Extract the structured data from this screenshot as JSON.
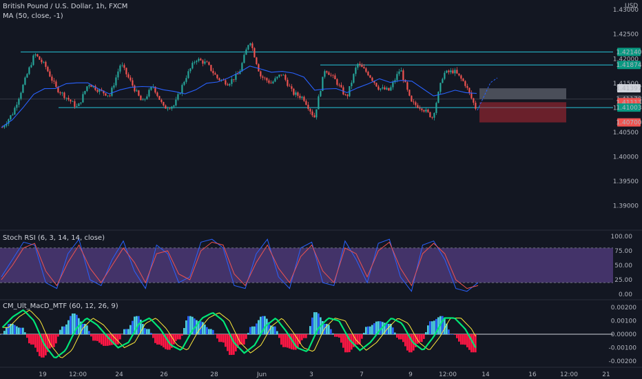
{
  "header": {
    "symbol": "British Pound / U.S. Dollar, 1h, FXCM",
    "ma_legend": "MA (50, close, -1)",
    "currency": "USD"
  },
  "indicators": {
    "stoch_legend": "Stoch RSI (6, 3, 14, 14, close)",
    "macd_legend": "CM_Ult_MacD_MTF (60, 12, 26, 9)"
  },
  "colors": {
    "background": "#131722",
    "candle_up": "#26a69a",
    "candle_down": "#ef5350",
    "ma": "#2962ff",
    "channel": "#26c6da",
    "rsi_band": "#7e57c2",
    "rsi_k": "#2962ff",
    "rsi_d": "#ef5350",
    "macd_up_strong": "#00e676",
    "macd_down_strong": "#ff1744",
    "macd_blue": "#2962ff",
    "macd_aqua": "#4dd0e1",
    "signal_line": "#ffeb3b"
  },
  "chart_data": [
    {
      "type": "candlestick",
      "title": "British Pound / U.S. Dollar, 1h, FXCM",
      "y_axis": {
        "unit": "USD",
        "ylim": [
          1.385,
          1.432
        ],
        "ticks": [
          "1.43000",
          "1.42500",
          "1.42000",
          "1.41500",
          "1.41000",
          "1.40500",
          "1.40000",
          "1.39500",
          "1.39000"
        ]
      },
      "x_axis": {
        "ticks": [
          "19",
          "12:00",
          "24",
          "26",
          "28",
          "Jun",
          "3",
          "7",
          "9",
          "12:00",
          "14",
          "16",
          "12:00",
          "21"
        ]
      },
      "price_labels": [
        {
          "value": "1.42140",
          "style": "channel"
        },
        {
          "value": "1.41874",
          "style": "channel"
        },
        {
          "value": "1.41397",
          "style": "target"
        },
        {
          "value": "1.41178",
          "style": "last"
        },
        {
          "value": "1.41113",
          "style": "stop"
        },
        {
          "value": "1.41003",
          "style": "channel"
        },
        {
          "value": "1.40700",
          "style": "stop"
        }
      ],
      "horizontal_lines": [
        1.4214,
        1.41874,
        1.41003
      ],
      "position": {
        "entry": 1.41178,
        "target": 1.41397,
        "stop": 1.407
      },
      "candles_summary": "hourly candles ranging within approx 1.4070 - 1.4250 channel",
      "key_closes": [
        1.406,
        1.409,
        1.415,
        1.421,
        1.4185,
        1.414,
        1.412,
        1.41,
        1.415,
        1.4135,
        1.4125,
        1.419,
        1.415,
        1.411,
        1.4145,
        1.41,
        1.4105,
        1.416,
        1.42,
        1.419,
        1.416,
        1.415,
        1.417,
        1.424,
        1.4165,
        1.415,
        1.417,
        1.413,
        1.412,
        1.408,
        1.418,
        1.4155,
        1.412,
        1.419,
        1.417,
        1.414,
        1.4135,
        1.418,
        1.411,
        1.41,
        1.408,
        1.417,
        1.4175,
        1.415,
        1.41
      ]
    },
    {
      "type": "line",
      "title": "Stoch RSI (6, 3, 14, 14, close)",
      "ylim": [
        0,
        100
      ],
      "ticks": [
        "100.00",
        "75.00",
        "50.00",
        "25.00",
        "0.00"
      ],
      "band": [
        20,
        80
      ],
      "series": [
        {
          "name": "K",
          "values": [
            30,
            60,
            90,
            85,
            20,
            10,
            70,
            95,
            25,
            15,
            60,
            92,
            40,
            10,
            85,
            70,
            20,
            30,
            90,
            95,
            80,
            15,
            10,
            70,
            95,
            30,
            10,
            80,
            90,
            20,
            15,
            92,
            60,
            20,
            88,
            95,
            30,
            5,
            85,
            92,
            60,
            10,
            5,
            20
          ]
        },
        {
          "name": "D",
          "values": [
            25,
            50,
            80,
            88,
            40,
            15,
            55,
            85,
            45,
            20,
            50,
            80,
            55,
            20,
            70,
            75,
            35,
            25,
            75,
            90,
            85,
            35,
            15,
            55,
            85,
            45,
            20,
            65,
            85,
            40,
            20,
            80,
            70,
            30,
            75,
            90,
            45,
            15,
            70,
            88,
            70,
            25,
            10,
            15
          ]
        }
      ]
    },
    {
      "type": "bar",
      "title": "CM_Ult_MacD_MTF (60, 12, 26, 9)",
      "ylim": [
        -0.0023,
        0.0023
      ],
      "ticks": [
        "0.00200",
        "0.00100",
        "0.00000",
        "-0.00100",
        "-0.00200"
      ],
      "macd": [
        0.0005,
        0.0013,
        0.0018,
        0.001,
        -0.0008,
        -0.0018,
        -0.0012,
        0.0004,
        0.0012,
        0.0007,
        -0.0002,
        -0.001,
        -0.0006,
        0.0008,
        0.0012,
        0.0004,
        -0.0008,
        -0.0012,
        0.0002,
        0.0012,
        0.0016,
        0.001,
        -0.0006,
        -0.0014,
        -0.0008,
        0.0006,
        0.0012,
        0.0002,
        -0.001,
        -0.0013,
        0.0004,
        0.0012,
        0.001,
        -0.0004,
        -0.0012,
        -0.0006,
        0.0004,
        0.0012,
        0.0008,
        -0.0006,
        -0.0012,
        -0.0002,
        0.0012,
        0.0012,
        0.0004,
        -0.001
      ]
    }
  ]
}
